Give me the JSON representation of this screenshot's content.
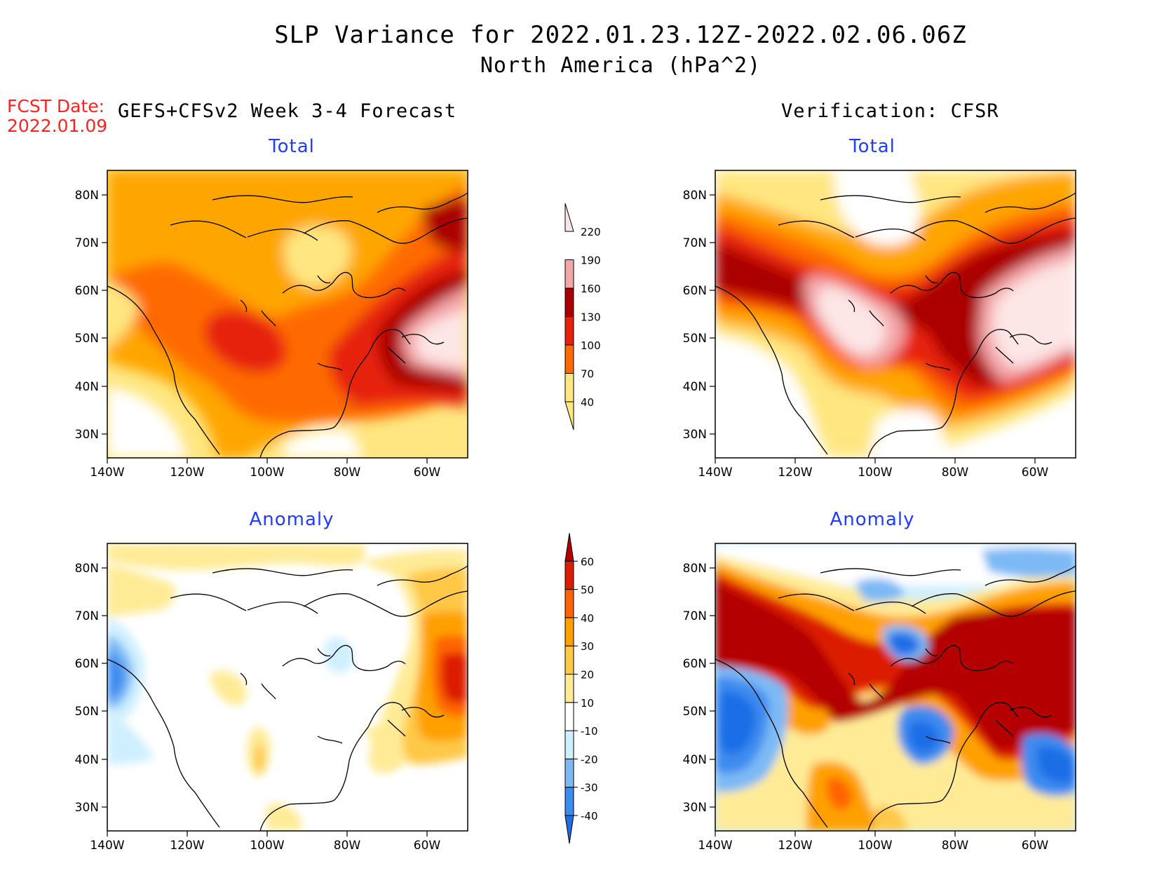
{
  "title": {
    "line1": "SLP Variance for 2022.01.23.12Z-2022.02.06.06Z",
    "line2": "North America (hPa^2)"
  },
  "forecast_date": {
    "label": "FCST Date:",
    "value": "2022.01.09"
  },
  "columns": {
    "left": "GEFS+CFSv2 Week 3-4 Forecast",
    "right": "Verification: CFSR"
  },
  "panels": [
    {
      "id": "forecast-total",
      "title": "Total"
    },
    {
      "id": "verification-total",
      "title": "Total"
    },
    {
      "id": "forecast-anomaly",
      "title": "Anomaly"
    },
    {
      "id": "verification-anomaly",
      "title": "Anomaly"
    }
  ],
  "axes": {
    "lat_labels": [
      "80N",
      "70N",
      "60N",
      "50N",
      "40N",
      "30N"
    ],
    "lon_labels": [
      "140W",
      "120W",
      "100W",
      "80W",
      "60W"
    ]
  },
  "total_colorbar": {
    "levels": [
      "40",
      "70",
      "100",
      "130",
      "160",
      "190",
      "220"
    ],
    "colors": [
      "#ffe680",
      "#ffa500",
      "#ff6a00",
      "#e6230a",
      "#aa0000",
      "#f4a6a8",
      "#fde6e6"
    ]
  },
  "anomaly_colorbar": {
    "levels": [
      "-40",
      "-30",
      "-20",
      "-10",
      "10",
      "20",
      "30",
      "40",
      "50",
      "60"
    ],
    "colors": [
      "#1e6ee6",
      "#3c8cf0",
      "#7db9f5",
      "#cfefff",
      "#ffffff",
      "#ffeb96",
      "#ffc846",
      "#ffa000",
      "#ff6400",
      "#dc1e00",
      "#b40000"
    ]
  }
}
